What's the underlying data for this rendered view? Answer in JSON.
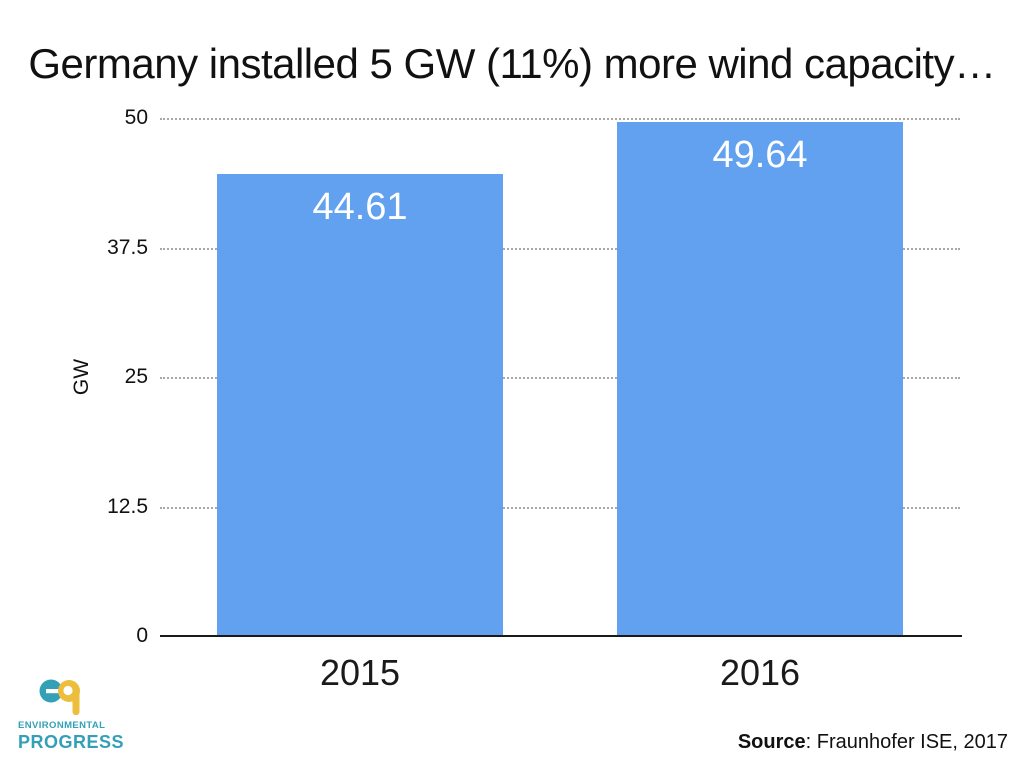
{
  "slide": {
    "title": "Germany installed 5 GW (11%) more wind capacity…",
    "source_label": "Source",
    "source_rest": ": Fraunhofer ISE, 2017"
  },
  "logo": {
    "monogram": "ep",
    "line1": "ENVIRONMENTAL",
    "line2": "PROGRESS",
    "teal": "#33A0B8",
    "yellow": "#EDBE3C"
  },
  "chart_data": {
    "type": "bar",
    "categories": [
      "2015",
      "2016"
    ],
    "values": [
      44.61,
      49.64
    ],
    "value_labels": [
      "44.61",
      "49.64"
    ],
    "title": "Germany installed 5 GW (11%) more wind capacity…",
    "xlabel": "",
    "ylabel": "GW",
    "ylim": [
      0,
      50
    ],
    "yticks": [
      0,
      12.5,
      25,
      37.5,
      50
    ],
    "ytick_labels": [
      "0",
      "12.5",
      "25",
      "37.5",
      "50"
    ],
    "bar_color": "#62A1F0",
    "value_label_color": "#ffffff",
    "gridlines": "horizontal dotted gray",
    "legend_position": "none"
  }
}
